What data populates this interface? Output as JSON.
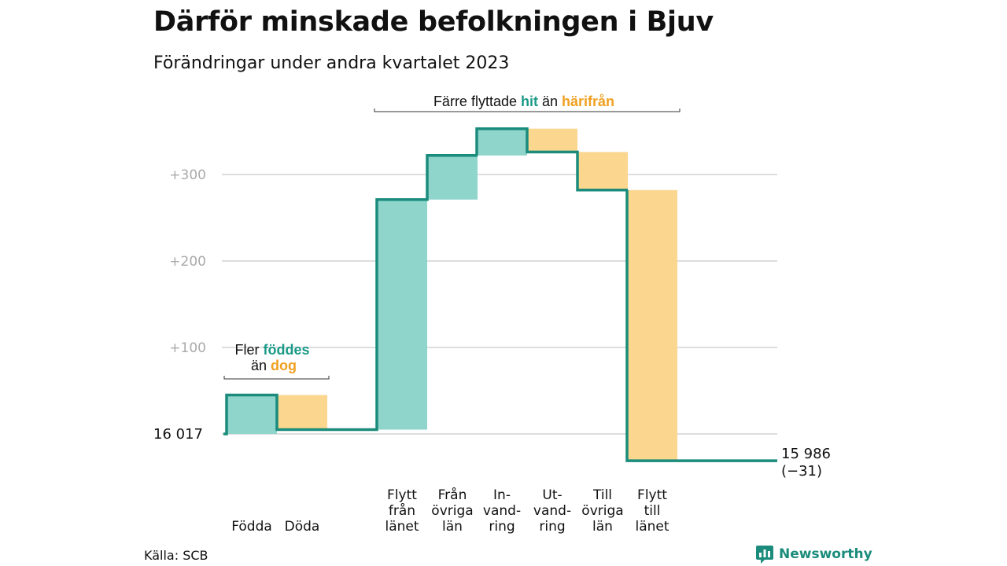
{
  "title": "Därför minskade befolkningen i Bjuv",
  "subtitle": "Förändringar under andra kvartalet 2023",
  "source": "Källa: SCB",
  "brand": {
    "name": "Newsworthy",
    "icon": "bar-chart-speech-bubble-icon"
  },
  "colors": {
    "line": "#1b8c7c",
    "increase": "#8fd5cc",
    "decrease": "#fad68f",
    "accent_hit": "#1b9a88",
    "accent_from": "#f0a020",
    "grid": "#dddddd",
    "tick": "#aaaaaa"
  },
  "annotations": {
    "births": {
      "prefix": "Fler",
      "hit": "föddes",
      "mid": "än",
      "from": "dog"
    },
    "moves": {
      "prefix": "Färre flyttade",
      "hit": "hit",
      "mid": "än",
      "from": "härifrån"
    }
  },
  "chart_data": {
    "type": "waterfall",
    "start_label": "16  017",
    "end_label": "15 986",
    "end_change": "(−31)",
    "baseline": 16017,
    "end_value": 15986,
    "ylim": [
      -35,
      345
    ],
    "yticks": [
      {
        "value": 100,
        "label": "+100"
      },
      {
        "value": 200,
        "label": "+200"
      },
      {
        "value": 300,
        "label": "+300"
      }
    ],
    "grid": true,
    "steps": [
      {
        "label": [
          "Födda"
        ],
        "change": 45
      },
      {
        "label": [
          "Döda"
        ],
        "change": -40
      },
      {
        "label": [
          "Flytt",
          "från",
          "länet"
        ],
        "change": 266
      },
      {
        "label": [
          "Från",
          "övriga",
          "län"
        ],
        "change": 51
      },
      {
        "label": [
          "In-",
          "vand-",
          "ring"
        ],
        "change": 31
      },
      {
        "label": [
          "Ut-",
          "vand-",
          "ring"
        ],
        "change": -27
      },
      {
        "label": [
          "Till",
          "övriga",
          "län"
        ],
        "change": -44
      },
      {
        "label": [
          "Flytt",
          "till",
          "länet"
        ],
        "change": -313
      }
    ]
  }
}
